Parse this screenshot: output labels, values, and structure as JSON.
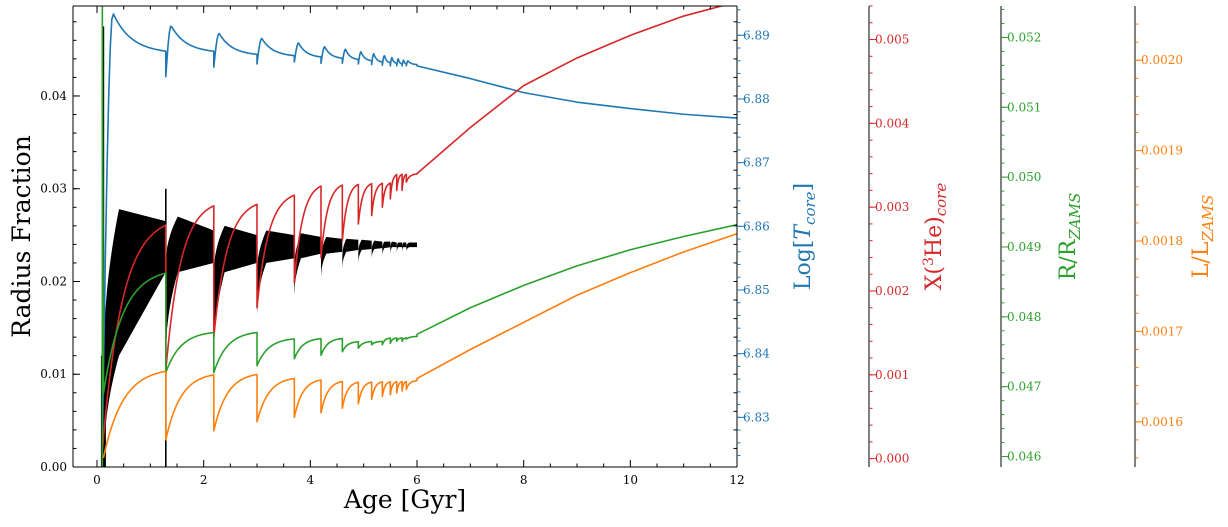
{
  "chart_data": {
    "type": "line",
    "title": "",
    "xlabel": "Age [Gyr]",
    "xlim": [
      -0.45,
      12.0
    ],
    "x_ticks": [
      0,
      2,
      4,
      6,
      8,
      10,
      12
    ],
    "grid": false,
    "legend": "none",
    "axes": [
      {
        "id": "radius",
        "side": "left",
        "label": "Radius Fraction",
        "color": "#000000",
        "ylim": [
          0.0,
          0.0497
        ],
        "ticks": [
          0.0,
          0.01,
          0.02,
          0.03,
          0.04
        ],
        "tick_labels": [
          "0.00",
          "0.01",
          "0.02",
          "0.03",
          "0.04"
        ]
      },
      {
        "id": "tcore",
        "side": "right",
        "label_parts": [
          "Log[",
          "T",
          "core",
          "]"
        ],
        "color": "#1f77b4",
        "ylim": [
          6.8222,
          6.8946
        ],
        "ticks": [
          6.83,
          6.84,
          6.85,
          6.86,
          6.87,
          6.88,
          6.89
        ],
        "tick_labels": [
          "6.83",
          "6.84",
          "6.85",
          "6.86",
          "6.87",
          "6.88",
          "6.89"
        ]
      },
      {
        "id": "he3",
        "side": "right",
        "label_parts": [
          "X(",
          "3",
          "He)",
          "core"
        ],
        "color": "#d62728",
        "ylim": [
          -0.0001,
          0.0054
        ],
        "ticks": [
          0.0,
          0.001,
          0.002,
          0.003,
          0.004,
          0.005
        ],
        "tick_labels": [
          "0.000",
          "0.001",
          "0.002",
          "0.003",
          "0.004",
          "0.005"
        ]
      },
      {
        "id": "rrzams",
        "side": "right",
        "label_parts": [
          "R/R",
          "ZAMS"
        ],
        "color": "#2ca02c",
        "ylim": [
          0.04585,
          0.05245
        ],
        "ticks": [
          0.046,
          0.047,
          0.048,
          0.049,
          0.05,
          0.051,
          0.052
        ],
        "tick_labels": [
          "0.046",
          "0.047",
          "0.048",
          "0.049",
          "0.050",
          "0.051",
          "0.052"
        ]
      },
      {
        "id": "llzams",
        "side": "right",
        "label_parts": [
          "L/L",
          "ZAMS"
        ],
        "color": "#ff7f0e",
        "ylim": [
          0.00155,
          0.00206
        ],
        "ticks": [
          0.0016,
          0.0017,
          0.0018,
          0.0019,
          0.002
        ],
        "tick_labels": [
          "0.0016",
          "0.0017",
          "0.0018",
          "0.0019",
          "0.0020"
        ]
      }
    ],
    "cycle_starts": [
      0.1,
      1.29,
      2.19,
      3.0,
      3.7,
      4.2,
      4.6,
      4.9,
      5.15,
      5.35,
      5.5,
      5.62,
      5.72,
      5.8
    ],
    "convective_fraction": {
      "name": "Radius Fraction",
      "color": "#000000",
      "axis": "radius",
      "episodes": [
        {
          "start": 0.12,
          "end": 1.29,
          "min_start": 0.0,
          "max_start": 0.011,
          "min_peak": 0.012,
          "max_peak": 0.0278,
          "min_end": 0.021,
          "max_end": 0.0265
        },
        {
          "start": 1.29,
          "end": 2.19,
          "min_start": 0.012,
          "max_start": 0.022,
          "min_peak": 0.021,
          "max_peak": 0.027,
          "min_end": 0.022,
          "max_end": 0.0255
        },
        {
          "start": 2.19,
          "end": 3.0,
          "min_start": 0.012,
          "max_start": 0.021,
          "min_peak": 0.021,
          "max_peak": 0.026,
          "min_end": 0.022,
          "max_end": 0.025
        },
        {
          "start": 3.0,
          "end": 3.7,
          "min_start": 0.0165,
          "max_start": 0.021,
          "min_peak": 0.022,
          "max_peak": 0.0255,
          "min_end": 0.0225,
          "max_end": 0.025
        },
        {
          "start": 3.7,
          "end": 4.2,
          "min_start": 0.0185,
          "max_start": 0.0215,
          "min_peak": 0.0225,
          "max_peak": 0.0252,
          "min_end": 0.023,
          "max_end": 0.0248
        },
        {
          "start": 4.2,
          "end": 4.6,
          "min_start": 0.0205,
          "max_start": 0.0225,
          "min_peak": 0.023,
          "max_peak": 0.0248,
          "min_end": 0.0232,
          "max_end": 0.0246
        },
        {
          "start": 4.6,
          "end": 4.9,
          "min_start": 0.0215,
          "max_start": 0.0228,
          "min_peak": 0.0232,
          "max_peak": 0.0246,
          "min_end": 0.0234,
          "max_end": 0.0245
        },
        {
          "start": 4.9,
          "end": 5.15,
          "min_start": 0.022,
          "max_start": 0.0232,
          "min_peak": 0.0234,
          "max_peak": 0.0245,
          "min_end": 0.0235,
          "max_end": 0.0244
        },
        {
          "start": 5.15,
          "end": 5.35,
          "min_start": 0.0225,
          "max_start": 0.0234,
          "min_peak": 0.0235,
          "max_peak": 0.0244,
          "min_end": 0.0236,
          "max_end": 0.0243
        },
        {
          "start": 5.35,
          "end": 5.5,
          "min_start": 0.0228,
          "max_start": 0.0236,
          "min_peak": 0.0236,
          "max_peak": 0.0243,
          "min_end": 0.0237,
          "max_end": 0.0243
        },
        {
          "start": 5.5,
          "end": 5.62,
          "min_start": 0.023,
          "max_start": 0.0237,
          "min_peak": 0.0237,
          "max_peak": 0.0243,
          "min_end": 0.0237,
          "max_end": 0.0242
        },
        {
          "start": 5.62,
          "end": 5.72,
          "min_start": 0.0231,
          "max_start": 0.0237,
          "min_peak": 0.0237,
          "max_peak": 0.0242,
          "min_end": 0.0237,
          "max_end": 0.0242
        },
        {
          "start": 5.72,
          "end": 5.8,
          "min_start": 0.0232,
          "max_start": 0.0238,
          "min_peak": 0.0237,
          "max_peak": 0.0242,
          "min_end": 0.0237,
          "max_end": 0.0242
        },
        {
          "start": 5.8,
          "end": 6.0,
          "min_start": 0.0233,
          "max_start": 0.0238,
          "min_peak": 0.0237,
          "max_peak": 0.0242,
          "min_end": 0.0237,
          "max_end": 0.0242
        }
      ],
      "spikes": [
        {
          "x": 0.12,
          "y": 0.0475
        },
        {
          "x": 1.29,
          "y": 0.03
        }
      ]
    },
    "series": [
      {
        "name": "Log[T_core]",
        "axis": "tcore",
        "color": "#1f77b4",
        "cycle_shape": "sawtooth",
        "cycles": [
          {
            "start": 0.1,
            "rise_to": 0.3,
            "y0": 6.826,
            "y_peak": 6.8935,
            "y_end": 6.8875
          },
          {
            "start": 1.29,
            "rise_to": 1.39,
            "y0": 6.8835,
            "y_peak": 6.8915,
            "y_end": 6.8875
          },
          {
            "start": 2.19,
            "rise_to": 2.29,
            "y0": 6.885,
            "y_peak": 6.8903,
            "y_end": 6.887
          },
          {
            "start": 3.0,
            "rise_to": 3.09,
            "y0": 6.8855,
            "y_peak": 6.8895,
            "y_end": 6.8868
          },
          {
            "start": 3.7,
            "rise_to": 3.78,
            "y0": 6.8858,
            "y_peak": 6.8888,
            "y_end": 6.8866
          },
          {
            "start": 4.2,
            "rise_to": 4.27,
            "y0": 6.8856,
            "y_peak": 6.8882,
            "y_end": 6.8864
          },
          {
            "start": 4.6,
            "rise_to": 4.66,
            "y0": 6.8856,
            "y_peak": 6.8878,
            "y_end": 6.8862
          },
          {
            "start": 4.9,
            "rise_to": 4.95,
            "y0": 6.8855,
            "y_peak": 6.8874,
            "y_end": 6.886
          },
          {
            "start": 5.15,
            "rise_to": 5.19,
            "y0": 6.8854,
            "y_peak": 6.8871,
            "y_end": 6.8858
          },
          {
            "start": 5.35,
            "rise_to": 5.39,
            "y0": 6.8853,
            "y_peak": 6.8868,
            "y_end": 6.8857
          },
          {
            "start": 5.5,
            "rise_to": 5.53,
            "y0": 6.8852,
            "y_peak": 6.8865,
            "y_end": 6.8856
          },
          {
            "start": 5.62,
            "rise_to": 5.65,
            "y0": 6.8852,
            "y_peak": 6.8863,
            "y_end": 6.8855
          },
          {
            "start": 5.72,
            "rise_to": 5.75,
            "y0": 6.8852,
            "y_peak": 6.8861,
            "y_end": 6.8855
          },
          {
            "start": 5.8,
            "rise_to": 5.83,
            "y0": 6.8852,
            "y_peak": 6.886,
            "y_end": 6.8854
          }
        ],
        "tail": [
          [
            6.0,
            6.8852
          ],
          [
            7.0,
            6.8832
          ],
          [
            8.0,
            6.881
          ],
          [
            9.0,
            6.8795
          ],
          [
            10.0,
            6.8785
          ],
          [
            11.0,
            6.8776
          ],
          [
            12.0,
            6.877
          ]
        ]
      },
      {
        "name": "X(3He)_core",
        "axis": "he3",
        "color": "#d62728",
        "cycle_shape": "recovery",
        "cycles": [
          {
            "start": 0.1,
            "rise_to": 0.0,
            "y0": 0.0001,
            "y_peak": 0.0,
            "y_end": 0.0029
          },
          {
            "start": 1.29,
            "rise_to": 0.0,
            "y0": 0.00105,
            "y_peak": 0.0,
            "y_end": 0.0031
          },
          {
            "start": 2.19,
            "rise_to": 0.0,
            "y0": 0.00145,
            "y_peak": 0.0,
            "y_end": 0.0031
          },
          {
            "start": 3.0,
            "rise_to": 0.0,
            "y0": 0.0018,
            "y_peak": 0.0,
            "y_end": 0.0032
          },
          {
            "start": 3.7,
            "rise_to": 0.0,
            "y0": 0.0021,
            "y_peak": 0.0,
            "y_end": 0.0033
          },
          {
            "start": 4.2,
            "rise_to": 0.0,
            "y0": 0.0024,
            "y_peak": 0.0,
            "y_end": 0.0033
          },
          {
            "start": 4.6,
            "rise_to": 0.0,
            "y0": 0.0026,
            "y_peak": 0.0,
            "y_end": 0.0033
          },
          {
            "start": 4.9,
            "rise_to": 0.0,
            "y0": 0.0028,
            "y_peak": 0.0,
            "y_end": 0.0033
          },
          {
            "start": 5.15,
            "rise_to": 0.0,
            "y0": 0.0029,
            "y_peak": 0.0,
            "y_end": 0.0033
          },
          {
            "start": 5.35,
            "rise_to": 0.0,
            "y0": 0.003,
            "y_peak": 0.0,
            "y_end": 0.0033
          },
          {
            "start": 5.5,
            "rise_to": 0.0,
            "y0": 0.0031,
            "y_peak": 0.0,
            "y_end": 0.0034
          },
          {
            "start": 5.62,
            "rise_to": 0.0,
            "y0": 0.0032,
            "y_peak": 0.0,
            "y_end": 0.0034
          },
          {
            "start": 5.72,
            "rise_to": 0.0,
            "y0": 0.0032,
            "y_peak": 0.0,
            "y_end": 0.0034
          },
          {
            "start": 5.8,
            "rise_to": 0.0,
            "y0": 0.0033,
            "y_peak": 0.0,
            "y_end": 0.0034
          }
        ],
        "tail": [
          [
            6.0,
            0.0034
          ],
          [
            7.0,
            0.00395
          ],
          [
            8.0,
            0.00445
          ],
          [
            9.0,
            0.00478
          ],
          [
            10.0,
            0.00505
          ],
          [
            11.0,
            0.00528
          ],
          [
            12.0,
            0.00545
          ]
        ]
      },
      {
        "name": "R/R_ZAMS",
        "axis": "rrzams",
        "color": "#2ca02c",
        "cycle_shape": "recovery",
        "spike": {
          "x": 0.1,
          "y_top": 0.0525
        },
        "cycles": [
          {
            "start": 0.12,
            "rise_to": 0.0,
            "y0": 0.0469,
            "y_peak": 0.0,
            "y_end": 0.0487
          },
          {
            "start": 1.29,
            "rise_to": 0.0,
            "y0": 0.0472,
            "y_peak": 0.0,
            "y_end": 0.0478
          },
          {
            "start": 2.19,
            "rise_to": 0.0,
            "y0": 0.0472,
            "y_peak": 0.0,
            "y_end": 0.0478
          },
          {
            "start": 3.0,
            "rise_to": 0.0,
            "y0": 0.0473,
            "y_peak": 0.0,
            "y_end": 0.0477
          },
          {
            "start": 3.7,
            "rise_to": 0.0,
            "y0": 0.0474,
            "y_peak": 0.0,
            "y_end": 0.0477
          },
          {
            "start": 4.2,
            "rise_to": 0.0,
            "y0": 0.04745,
            "y_peak": 0.0,
            "y_end": 0.0477
          },
          {
            "start": 4.6,
            "rise_to": 0.0,
            "y0": 0.0475,
            "y_peak": 0.0,
            "y_end": 0.04765
          },
          {
            "start": 4.9,
            "rise_to": 0.0,
            "y0": 0.04755,
            "y_peak": 0.0,
            "y_end": 0.04765
          },
          {
            "start": 5.15,
            "rise_to": 0.0,
            "y0": 0.0476,
            "y_peak": 0.0,
            "y_end": 0.04765
          },
          {
            "start": 5.35,
            "rise_to": 0.0,
            "y0": 0.0476,
            "y_peak": 0.0,
            "y_end": 0.0477
          },
          {
            "start": 5.5,
            "rise_to": 0.0,
            "y0": 0.04762,
            "y_peak": 0.0,
            "y_end": 0.0477
          },
          {
            "start": 5.62,
            "rise_to": 0.0,
            "y0": 0.04765,
            "y_peak": 0.0,
            "y_end": 0.0477
          },
          {
            "start": 5.72,
            "rise_to": 0.0,
            "y0": 0.04765,
            "y_peak": 0.0,
            "y_end": 0.0477
          },
          {
            "start": 5.8,
            "rise_to": 0.0,
            "y0": 0.04768,
            "y_peak": 0.0,
            "y_end": 0.04772
          }
        ],
        "tail": [
          [
            6.0,
            0.04775
          ],
          [
            7.0,
            0.04813
          ],
          [
            8.0,
            0.04845
          ],
          [
            9.0,
            0.04873
          ],
          [
            10.0,
            0.04896
          ],
          [
            11.0,
            0.04915
          ],
          [
            12.0,
            0.04932
          ]
        ]
      },
      {
        "name": "L/L_ZAMS",
        "axis": "llzams",
        "color": "#ff7f0e",
        "cycle_shape": "recovery",
        "cycles": [
          {
            "start": 0.12,
            "rise_to": 0.0,
            "y0": 0.00156,
            "y_peak": 0.0,
            "y_end": 0.00166
          },
          {
            "start": 1.29,
            "rise_to": 0.0,
            "y0": 0.00158,
            "y_peak": 0.0,
            "y_end": 0.001655
          },
          {
            "start": 2.19,
            "rise_to": 0.0,
            "y0": 0.00159,
            "y_peak": 0.0,
            "y_end": 0.001655
          },
          {
            "start": 3.0,
            "rise_to": 0.0,
            "y0": 0.0016,
            "y_peak": 0.0,
            "y_end": 0.00165
          },
          {
            "start": 3.7,
            "rise_to": 0.0,
            "y0": 0.001605,
            "y_peak": 0.0,
            "y_end": 0.001648
          },
          {
            "start": 4.2,
            "rise_to": 0.0,
            "y0": 0.00161,
            "y_peak": 0.0,
            "y_end": 0.001646
          },
          {
            "start": 4.6,
            "rise_to": 0.0,
            "y0": 0.001615,
            "y_peak": 0.0,
            "y_end": 0.001645
          },
          {
            "start": 4.9,
            "rise_to": 0.0,
            "y0": 0.00162,
            "y_peak": 0.0,
            "y_end": 0.001645
          },
          {
            "start": 5.15,
            "rise_to": 0.0,
            "y0": 0.001625,
            "y_peak": 0.0,
            "y_end": 0.001645
          },
          {
            "start": 5.35,
            "rise_to": 0.0,
            "y0": 0.001628,
            "y_peak": 0.0,
            "y_end": 0.001645
          },
          {
            "start": 5.5,
            "rise_to": 0.0,
            "y0": 0.00163,
            "y_peak": 0.0,
            "y_end": 0.001645
          },
          {
            "start": 5.62,
            "rise_to": 0.0,
            "y0": 0.001632,
            "y_peak": 0.0,
            "y_end": 0.001645
          },
          {
            "start": 5.72,
            "rise_to": 0.0,
            "y0": 0.001634,
            "y_peak": 0.0,
            "y_end": 0.001645
          },
          {
            "start": 5.8,
            "rise_to": 0.0,
            "y0": 0.001636,
            "y_peak": 0.0,
            "y_end": 0.001646
          }
        ],
        "tail": [
          [
            6.0,
            0.001648
          ],
          [
            7.0,
            0.00168
          ],
          [
            8.0,
            0.00171
          ],
          [
            9.0,
            0.00174
          ],
          [
            10.0,
            0.001765
          ],
          [
            11.0,
            0.001788
          ],
          [
            12.0,
            0.001808
          ]
        ]
      }
    ]
  }
}
